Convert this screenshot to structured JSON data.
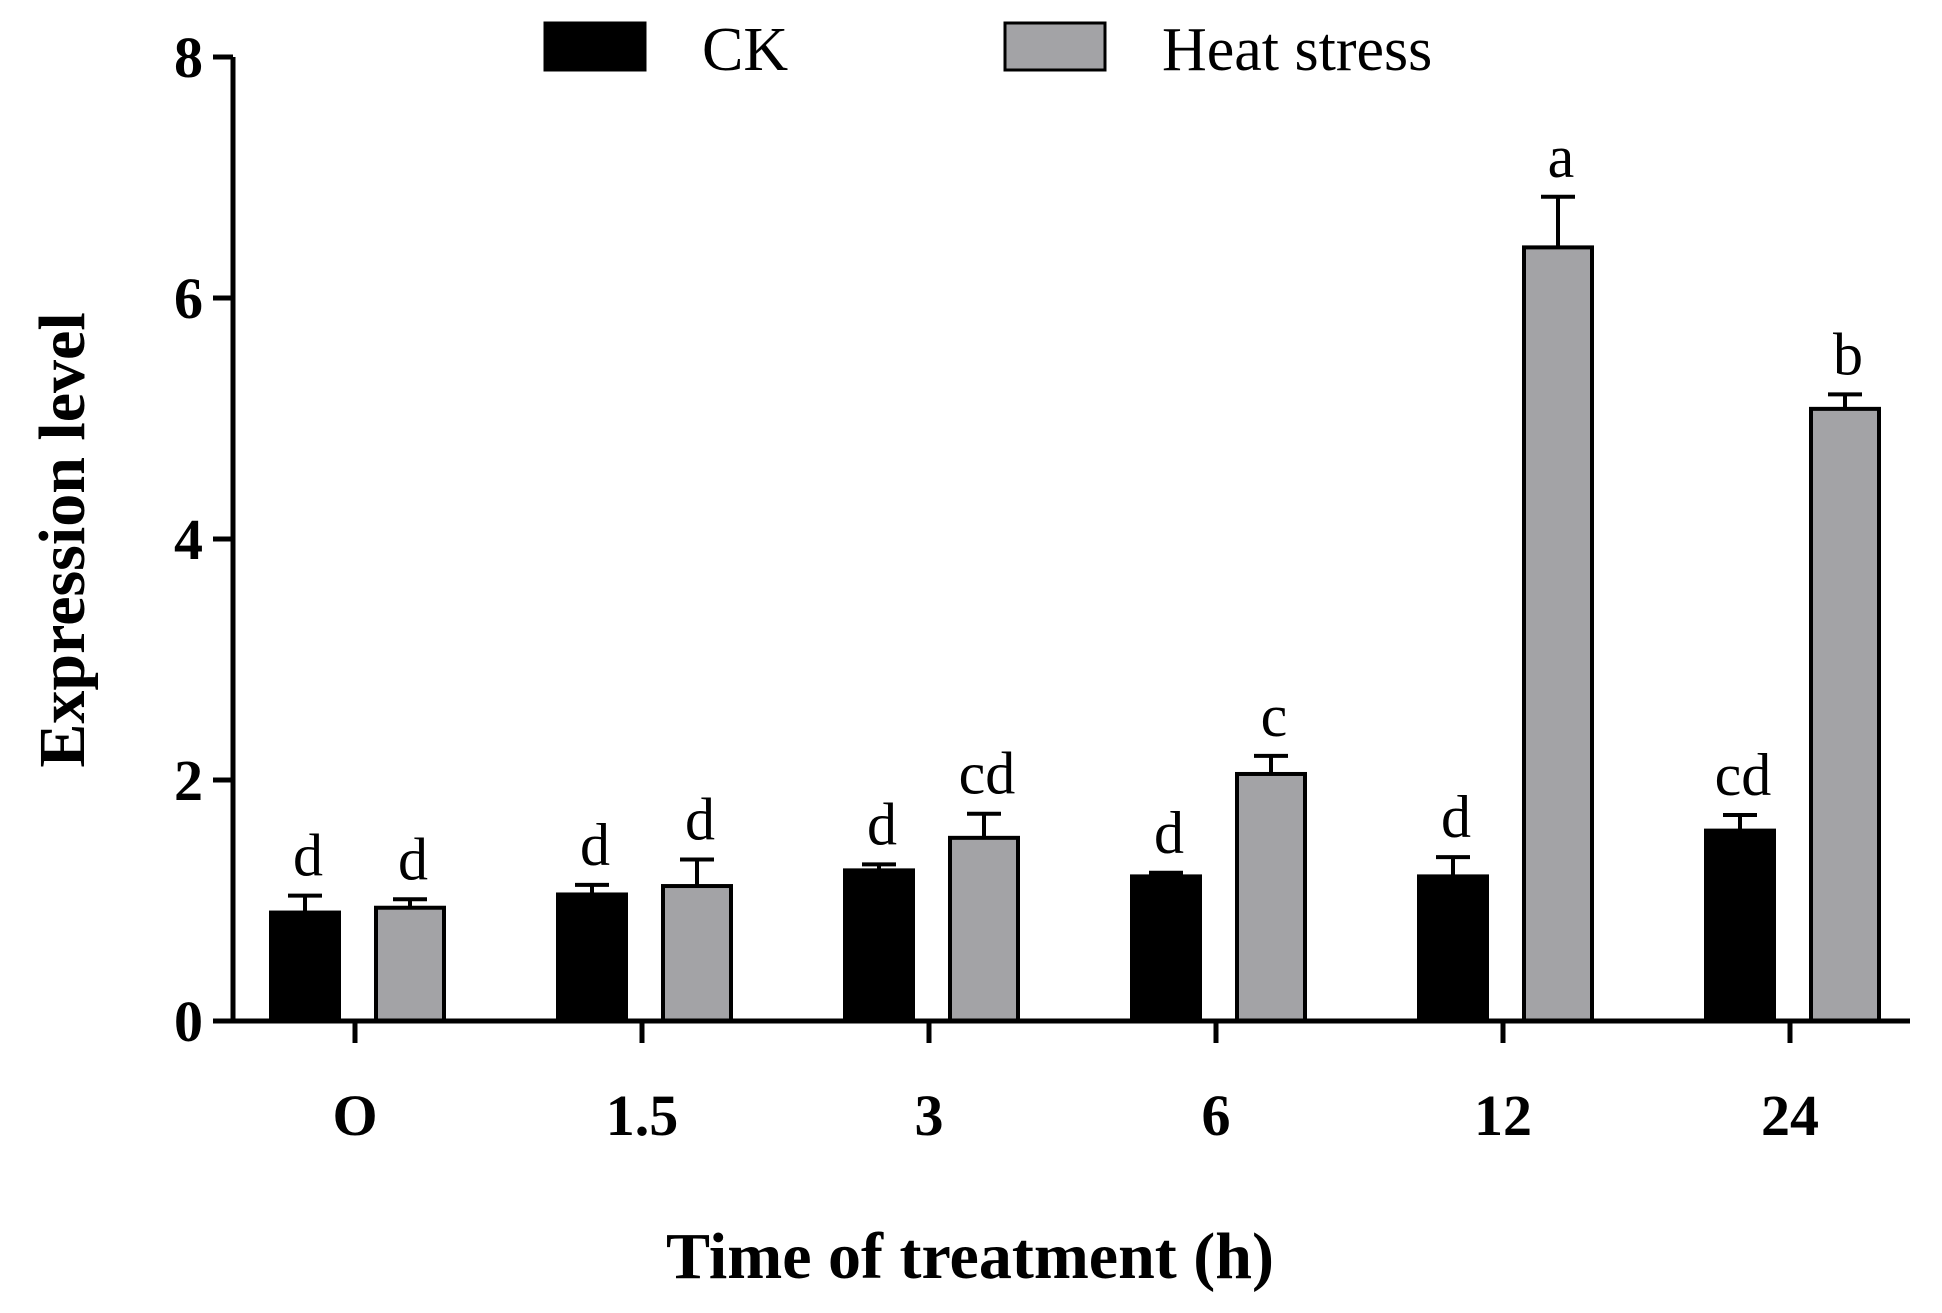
{
  "chart_data": {
    "type": "bar",
    "title": "",
    "xlabel": "Time of treatment (h)",
    "ylabel": "Expression level",
    "categories": [
      "O",
      "1.5",
      "3",
      "6",
      "12",
      "24"
    ],
    "ylim": [
      0,
      8
    ],
    "yticks": [
      "0",
      "2",
      "4",
      "6",
      "8"
    ],
    "grid": false,
    "legend_position": "top",
    "series": [
      {
        "name": "CK",
        "color": "#000000",
        "values": [
          0.9,
          1.05,
          1.25,
          1.2,
          1.2,
          1.58
        ],
        "errors": [
          0.14,
          0.08,
          0.05,
          0.03,
          0.16,
          0.13
        ],
        "labels": [
          "d",
          "d",
          "d",
          "d",
          "d",
          "cd"
        ]
      },
      {
        "name": "Heat stress",
        "color": "#a3a3a6",
        "values": [
          0.94,
          1.12,
          1.52,
          2.05,
          6.42,
          5.08
        ],
        "errors": [
          0.07,
          0.22,
          0.2,
          0.15,
          0.42,
          0.12
        ],
        "labels": [
          "d",
          "d",
          "cd",
          "c",
          "a",
          "b"
        ]
      }
    ]
  }
}
